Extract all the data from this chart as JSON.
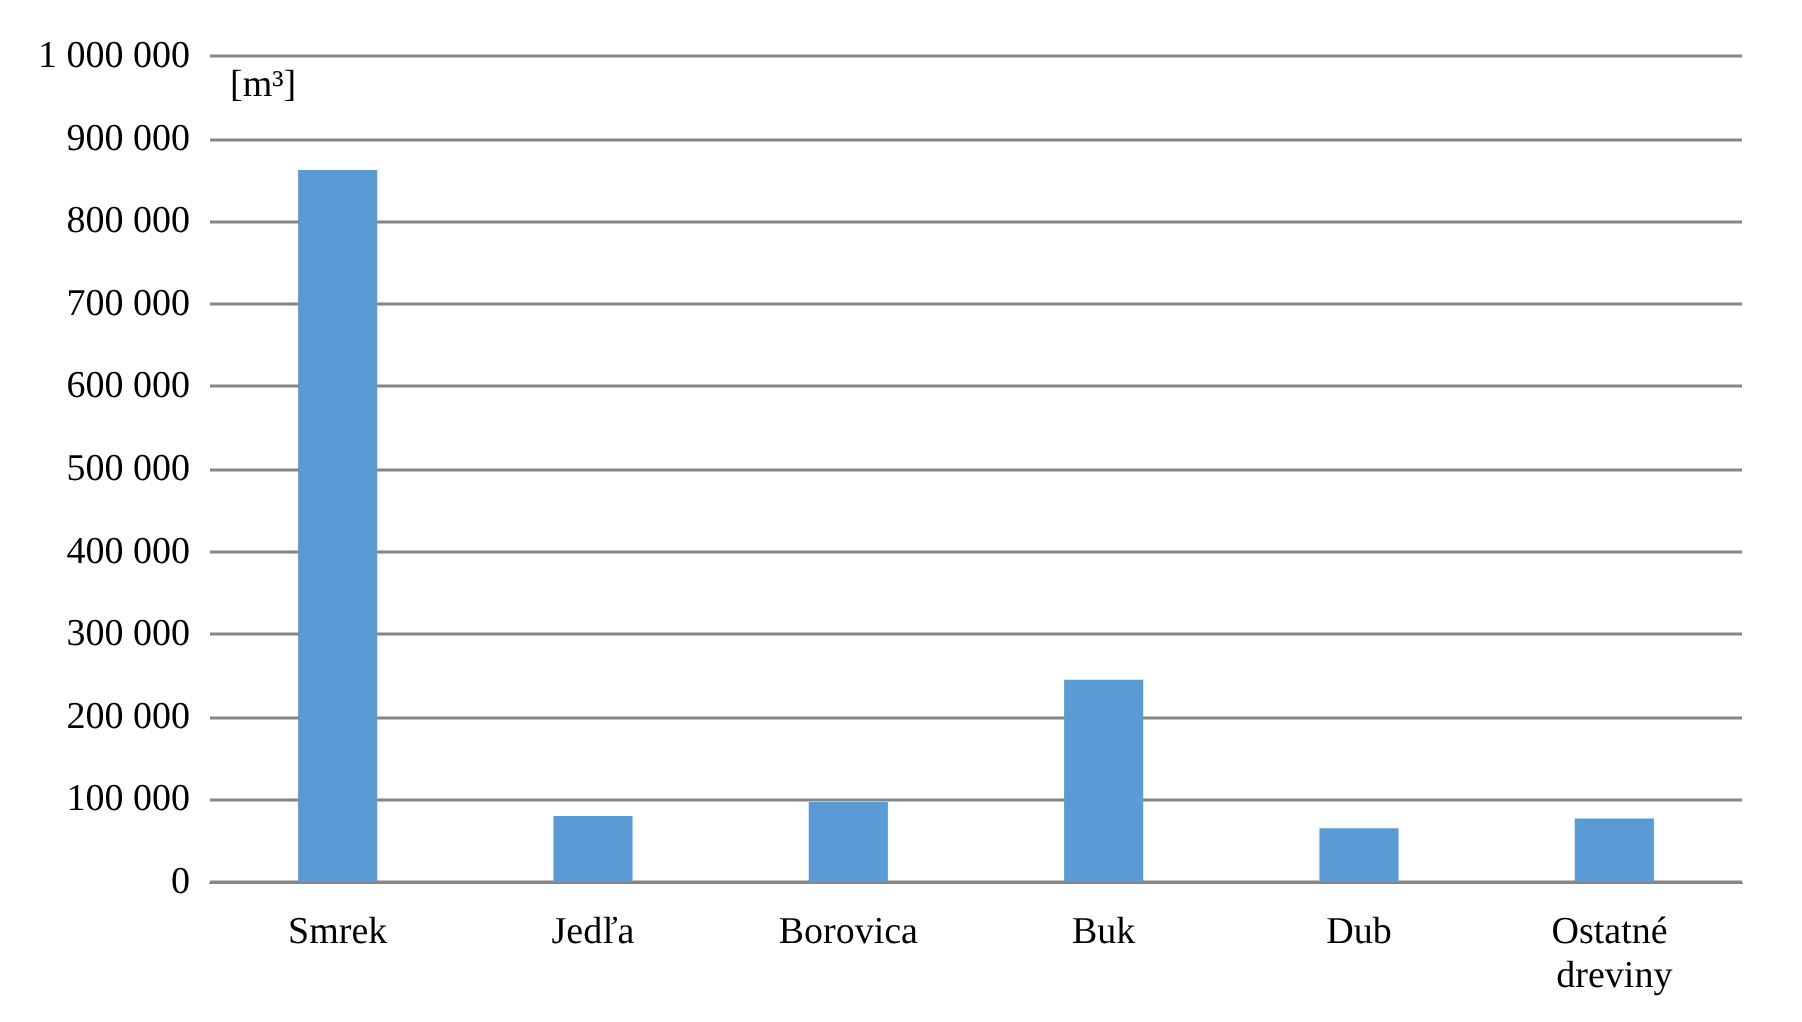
{
  "chart_data": {
    "type": "bar",
    "ylabel": "[m³]",
    "categories": [
      "Smrek",
      "Jedľa",
      "Borovica",
      "Buk",
      "Dub",
      "Ostatné dreviny"
    ],
    "values": [
      862000,
      80000,
      97000,
      245000,
      65000,
      77000
    ],
    "color": "#5b9bd5",
    "ylim": [
      0,
      1000000
    ],
    "yticks": [
      {
        "value": 0,
        "label": "0"
      },
      {
        "value": 100000,
        "label": "100 000"
      },
      {
        "value": 200000,
        "label": "200 000"
      },
      {
        "value": 300000,
        "label": "300 000"
      },
      {
        "value": 400000,
        "label": "400 000"
      },
      {
        "value": 500000,
        "label": "500 000"
      },
      {
        "value": 600000,
        "label": "600 000"
      },
      {
        "value": 700000,
        "label": "700 000"
      },
      {
        "value": 800000,
        "label": "800 000"
      },
      {
        "value": 900000,
        "label": "900 000"
      },
      {
        "value": 1000000,
        "label": "1 000 000"
      }
    ],
    "grid": true
  }
}
